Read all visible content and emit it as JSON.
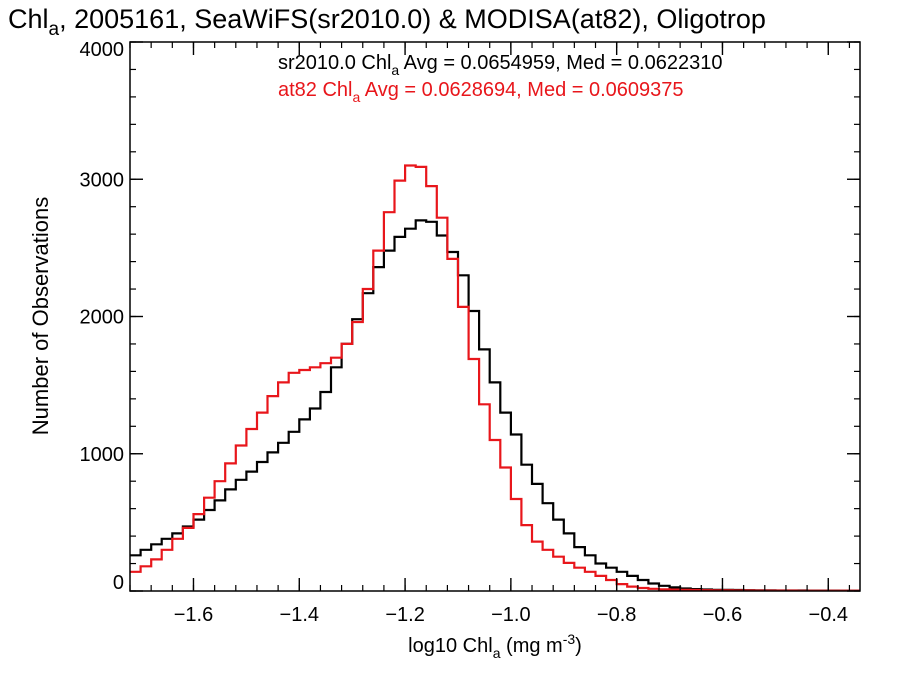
{
  "chart_data": {
    "type": "line",
    "title": {
      "parts": [
        {
          "text": "Chl",
          "sub": false
        },
        {
          "text": "a",
          "sub": true
        },
        {
          "text": ", 2005161, SeaWiFS(sr2010.0) & MODISA(at82), Oligotrop",
          "sub": false
        }
      ]
    },
    "xlabel": {
      "parts": [
        {
          "text": "log10 Chl",
          "kind": "normal"
        },
        {
          "text": "a",
          "kind": "sub"
        },
        {
          "text": " (mg m",
          "kind": "normal"
        },
        {
          "text": "-3",
          "kind": "sup"
        },
        {
          "text": ")",
          "kind": "normal"
        }
      ]
    },
    "ylabel": "Number of Observations",
    "xlim": [
      -1.72,
      -0.34
    ],
    "ylim": [
      0,
      4000
    ],
    "xticks": [
      -1.6,
      -1.4,
      -1.2,
      -1.0,
      -0.8,
      -0.6,
      -0.4
    ],
    "xtick_labels": [
      "−1.6",
      "−1.4",
      "−1.2",
      "−1.0",
      "−0.8",
      "−0.6",
      "−0.4"
    ],
    "yticks": [
      0,
      1000,
      2000,
      3000,
      4000
    ],
    "ytick_labels": [
      "0",
      "1000",
      "2000",
      "3000",
      "4000"
    ],
    "x_minor_step": 0.04,
    "y_minor_step": 200,
    "grid": false,
    "step": true,
    "legend": [
      {
        "series": "sr2010.0",
        "color": "#000000",
        "parts": [
          {
            "text": "sr2010.0 Chl",
            "sub": false
          },
          {
            "text": "a",
            "sub": true
          },
          {
            "text": " Avg = 0.0654959, Med = 0.0622310",
            "sub": false
          }
        ]
      },
      {
        "series": "at82",
        "color": "#e8161b",
        "parts": [
          {
            "text": "at82 Chl",
            "sub": false
          },
          {
            "text": "a",
            "sub": true
          },
          {
            "text": " Avg = 0.0628694, Med = 0.0609375",
            "sub": false
          }
        ]
      }
    ],
    "series": [
      {
        "name": "sr2010.0",
        "color": "#000000",
        "x": [
          -1.72,
          -1.7,
          -1.68,
          -1.66,
          -1.64,
          -1.62,
          -1.6,
          -1.58,
          -1.56,
          -1.54,
          -1.52,
          -1.5,
          -1.48,
          -1.46,
          -1.44,
          -1.42,
          -1.4,
          -1.38,
          -1.36,
          -1.34,
          -1.32,
          -1.3,
          -1.28,
          -1.26,
          -1.24,
          -1.22,
          -1.2,
          -1.18,
          -1.16,
          -1.14,
          -1.12,
          -1.1,
          -1.08,
          -1.06,
          -1.04,
          -1.02,
          -1.0,
          -0.98,
          -0.96,
          -0.94,
          -0.92,
          -0.9,
          -0.88,
          -0.86,
          -0.84,
          -0.82,
          -0.8,
          -0.78,
          -0.76,
          -0.74,
          -0.72,
          -0.7,
          -0.68,
          -0.66,
          -0.64,
          -0.62,
          -0.6,
          -0.58,
          -0.56,
          -0.54,
          -0.52,
          -0.5,
          -0.48,
          -0.46,
          -0.44,
          -0.42,
          -0.4,
          -0.38,
          -0.36,
          -0.34
        ],
        "y": [
          260,
          300,
          340,
          380,
          420,
          470,
          520,
          590,
          660,
          740,
          810,
          870,
          940,
          1010,
          1080,
          1160,
          1250,
          1330,
          1450,
          1630,
          1800,
          1980,
          2170,
          2360,
          2480,
          2580,
          2640,
          2700,
          2690,
          2590,
          2470,
          2300,
          2040,
          1760,
          1520,
          1300,
          1140,
          920,
          780,
          640,
          520,
          420,
          320,
          260,
          200,
          170,
          140,
          110,
          80,
          55,
          38,
          26,
          18,
          14,
          11,
          9,
          8,
          7,
          6,
          5,
          5,
          4,
          4,
          4,
          3,
          3,
          3,
          2,
          2,
          2
        ]
      },
      {
        "name": "at82",
        "color": "#e8161b",
        "x": [
          -1.72,
          -1.7,
          -1.68,
          -1.66,
          -1.64,
          -1.62,
          -1.6,
          -1.58,
          -1.56,
          -1.54,
          -1.52,
          -1.5,
          -1.48,
          -1.46,
          -1.44,
          -1.42,
          -1.4,
          -1.38,
          -1.36,
          -1.34,
          -1.32,
          -1.3,
          -1.28,
          -1.26,
          -1.24,
          -1.22,
          -1.2,
          -1.18,
          -1.16,
          -1.14,
          -1.12,
          -1.1,
          -1.08,
          -1.06,
          -1.04,
          -1.02,
          -1.0,
          -0.98,
          -0.96,
          -0.94,
          -0.92,
          -0.9,
          -0.88,
          -0.86,
          -0.84,
          -0.82,
          -0.8,
          -0.78,
          -0.76,
          -0.74,
          -0.72,
          -0.7,
          -0.68,
          -0.66,
          -0.64,
          -0.62,
          -0.6,
          -0.58,
          -0.56,
          -0.54,
          -0.52,
          -0.5,
          -0.48,
          -0.46,
          -0.44,
          -0.42,
          -0.4,
          -0.38,
          -0.36,
          -0.34
        ],
        "y": [
          140,
          180,
          230,
          300,
          380,
          460,
          560,
          680,
          800,
          930,
          1060,
          1180,
          1300,
          1420,
          1520,
          1590,
          1610,
          1630,
          1660,
          1700,
          1800,
          1960,
          2200,
          2480,
          2760,
          2990,
          3100,
          3090,
          2950,
          2720,
          2420,
          2070,
          1690,
          1360,
          1100,
          900,
          670,
          480,
          360,
          300,
          250,
          205,
          170,
          140,
          110,
          80,
          50,
          32,
          22,
          16,
          12,
          10,
          8,
          7,
          6,
          5,
          5,
          4,
          4,
          3,
          3,
          3,
          3,
          2,
          2,
          2,
          2,
          2,
          2,
          2
        ]
      }
    ]
  }
}
